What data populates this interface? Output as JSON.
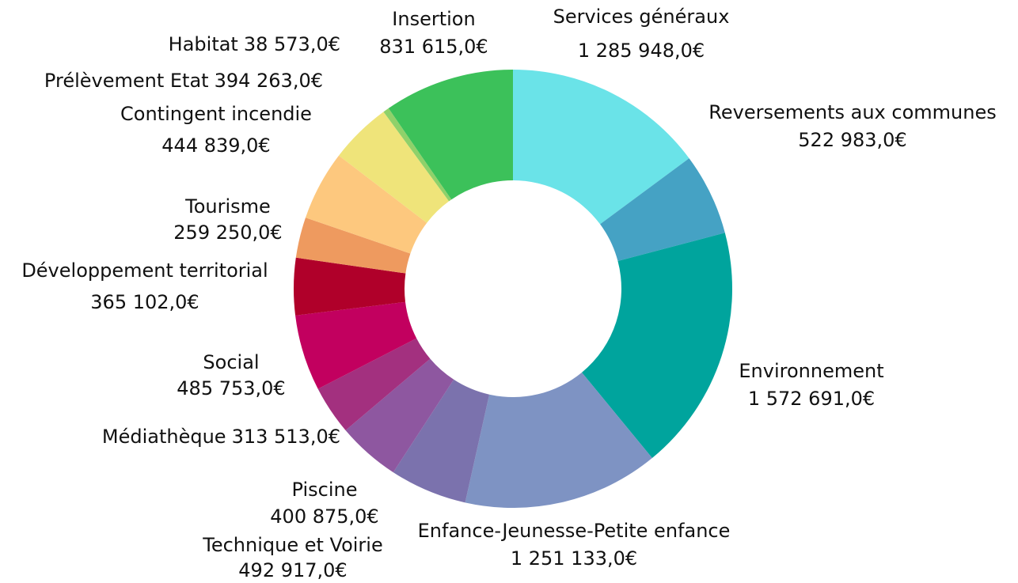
{
  "chart_data": {
    "type": "donut",
    "categories": [
      "Services généraux",
      "Reversements aux communes",
      "Environnement",
      "Enfance-Jeunesse-Petite enfance",
      "Technique et Voirie",
      "Piscine",
      "Médiathèque",
      "Social",
      "Développement territorial",
      "Tourisme",
      "Contingent incendie",
      "Prélèvement Etat",
      "Habitat",
      "Insertion"
    ],
    "values": [
      1285948,
      522983,
      1572691,
      1251133,
      492917,
      400875,
      313513,
      485753,
      365102,
      259250,
      444839,
      394263,
      38573,
      831615
    ],
    "value_labels": [
      "1 285 948,0€",
      "522 983,0€",
      "1 572 691,0€",
      "1 251 133,0€",
      "492 917,0€",
      "400 875,0€",
      "313 513,0€",
      "485 753,0€",
      "365 102,0€",
      "259 250,0€",
      "444 839,0€",
      "394 263,0€",
      "38 573,0€",
      "831 615,0€"
    ],
    "colors": [
      "#6ae3e8",
      "#45a2c4",
      "#00a49d",
      "#7e93c3",
      "#7b72ad",
      "#8e57a0",
      "#a3307f",
      "#c2005f",
      "#b0002a",
      "#ee9a5f",
      "#fdc87e",
      "#efe47a",
      "#8fd16a",
      "#3cc15a"
    ]
  }
}
